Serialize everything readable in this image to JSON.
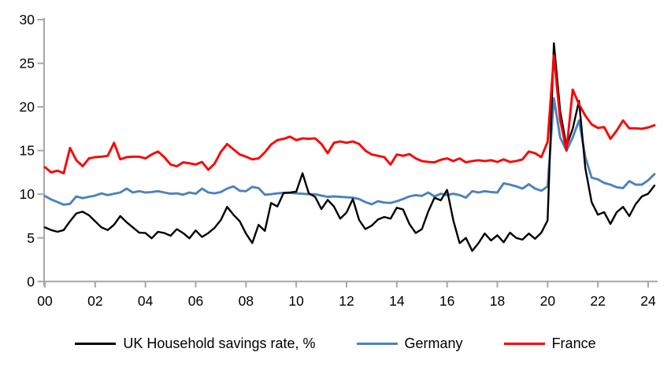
{
  "chart_data": {
    "type": "line",
    "title": "",
    "xlabel": "",
    "ylabel": "",
    "frequency": "quarterly",
    "x_start": "2000 Q1",
    "x_end": "2024 Q2",
    "x_tick_labels": [
      "00",
      "02",
      "04",
      "06",
      "08",
      "10",
      "12",
      "14",
      "16",
      "18",
      "20",
      "22",
      "24"
    ],
    "y_ticks": [
      0,
      5,
      10,
      15,
      20,
      25,
      30
    ],
    "ylim": [
      0,
      30
    ],
    "grid": false,
    "legend_position": "bottom",
    "axis_color": "#A6A6A6",
    "background_color": "#FFFFFF",
    "series": [
      {
        "name": "UK Household savings rate, %",
        "color": "#000000",
        "stroke_width": 2.4,
        "values": [
          6.2,
          5.9,
          5.7,
          5.9,
          6.9,
          7.8,
          8.0,
          7.6,
          6.9,
          6.2,
          5.9,
          6.5,
          7.5,
          6.8,
          6.2,
          5.6,
          5.55,
          4.95,
          5.7,
          5.55,
          5.25,
          6.0,
          5.55,
          4.95,
          5.85,
          5.1,
          5.55,
          6.15,
          7.05,
          8.55,
          7.65,
          6.9,
          5.5,
          4.4,
          6.5,
          5.8,
          9.0,
          8.6,
          10.15,
          10.2,
          10.3,
          12.4,
          10.1,
          9.7,
          8.3,
          9.35,
          8.6,
          7.2,
          7.9,
          9.45,
          7.05,
          6.0,
          6.4,
          7.1,
          7.4,
          7.2,
          8.45,
          8.25,
          6.6,
          5.55,
          6.0,
          8.0,
          9.6,
          9.3,
          10.5,
          7.0,
          4.4,
          5.0,
          3.5,
          4.4,
          5.5,
          4.7,
          5.3,
          4.5,
          5.6,
          5.0,
          4.8,
          5.5,
          4.9,
          5.6,
          7.0,
          27.3,
          19.5,
          15.5,
          17.5,
          20.7,
          13.0,
          9.1,
          7.65,
          7.95,
          6.6,
          7.95,
          8.55,
          7.5,
          8.85,
          9.75,
          10.05,
          11.0
        ]
      },
      {
        "name": "Germany",
        "color": "#4D82BC",
        "stroke_width": 2.9,
        "values": [
          9.8,
          9.4,
          9.1,
          8.8,
          8.9,
          9.75,
          9.55,
          9.7,
          9.85,
          10.1,
          9.9,
          10.05,
          10.2,
          10.65,
          10.2,
          10.35,
          10.2,
          10.25,
          10.35,
          10.2,
          10.05,
          10.1,
          9.95,
          10.2,
          10.05,
          10.65,
          10.2,
          10.1,
          10.25,
          10.65,
          10.9,
          10.4,
          10.35,
          10.85,
          10.7,
          9.95,
          10.0,
          10.1,
          10.15,
          10.15,
          10.1,
          10.05,
          10.0,
          10.0,
          9.85,
          9.7,
          9.75,
          9.7,
          9.65,
          9.6,
          9.45,
          9.1,
          8.85,
          9.2,
          9.05,
          9.0,
          9.2,
          9.45,
          9.75,
          9.9,
          9.8,
          10.2,
          9.75,
          10.05,
          9.9,
          10.05,
          9.9,
          9.6,
          10.35,
          10.2,
          10.35,
          10.25,
          10.2,
          11.25,
          11.1,
          10.9,
          10.65,
          11.15,
          10.65,
          10.4,
          10.9,
          21.0,
          16.5,
          15.0,
          16.5,
          18.45,
          14.25,
          11.9,
          11.7,
          11.3,
          11.1,
          10.8,
          10.7,
          11.5,
          11.1,
          11.1,
          11.6,
          12.3
        ]
      },
      {
        "name": "France",
        "color": "#FE0000",
        "stroke_width": 2.9,
        "values": [
          13.1,
          12.5,
          12.7,
          12.4,
          15.3,
          13.9,
          13.2,
          14.1,
          14.25,
          14.3,
          14.4,
          15.9,
          14.0,
          14.25,
          14.3,
          14.3,
          14.1,
          14.55,
          14.9,
          14.25,
          13.4,
          13.2,
          13.65,
          13.55,
          13.4,
          13.7,
          12.8,
          13.5,
          14.85,
          15.75,
          15.15,
          14.55,
          14.3,
          14.0,
          14.1,
          14.8,
          15.7,
          16.2,
          16.35,
          16.6,
          16.2,
          16.4,
          16.35,
          16.4,
          15.75,
          14.7,
          15.9,
          16.05,
          15.9,
          16.05,
          15.75,
          15.0,
          14.55,
          14.4,
          14.25,
          13.4,
          14.55,
          14.4,
          14.6,
          14.1,
          13.8,
          13.7,
          13.65,
          13.95,
          14.1,
          13.8,
          14.1,
          13.65,
          13.8,
          13.9,
          13.8,
          13.9,
          13.7,
          14.0,
          13.7,
          13.8,
          14.0,
          14.9,
          14.7,
          14.25,
          16.0,
          25.9,
          18.5,
          15.0,
          22.0,
          20.3,
          19.0,
          18.0,
          17.6,
          17.7,
          16.35,
          17.3,
          18.45,
          17.55,
          17.55,
          17.5,
          17.65,
          17.9
        ]
      }
    ]
  }
}
